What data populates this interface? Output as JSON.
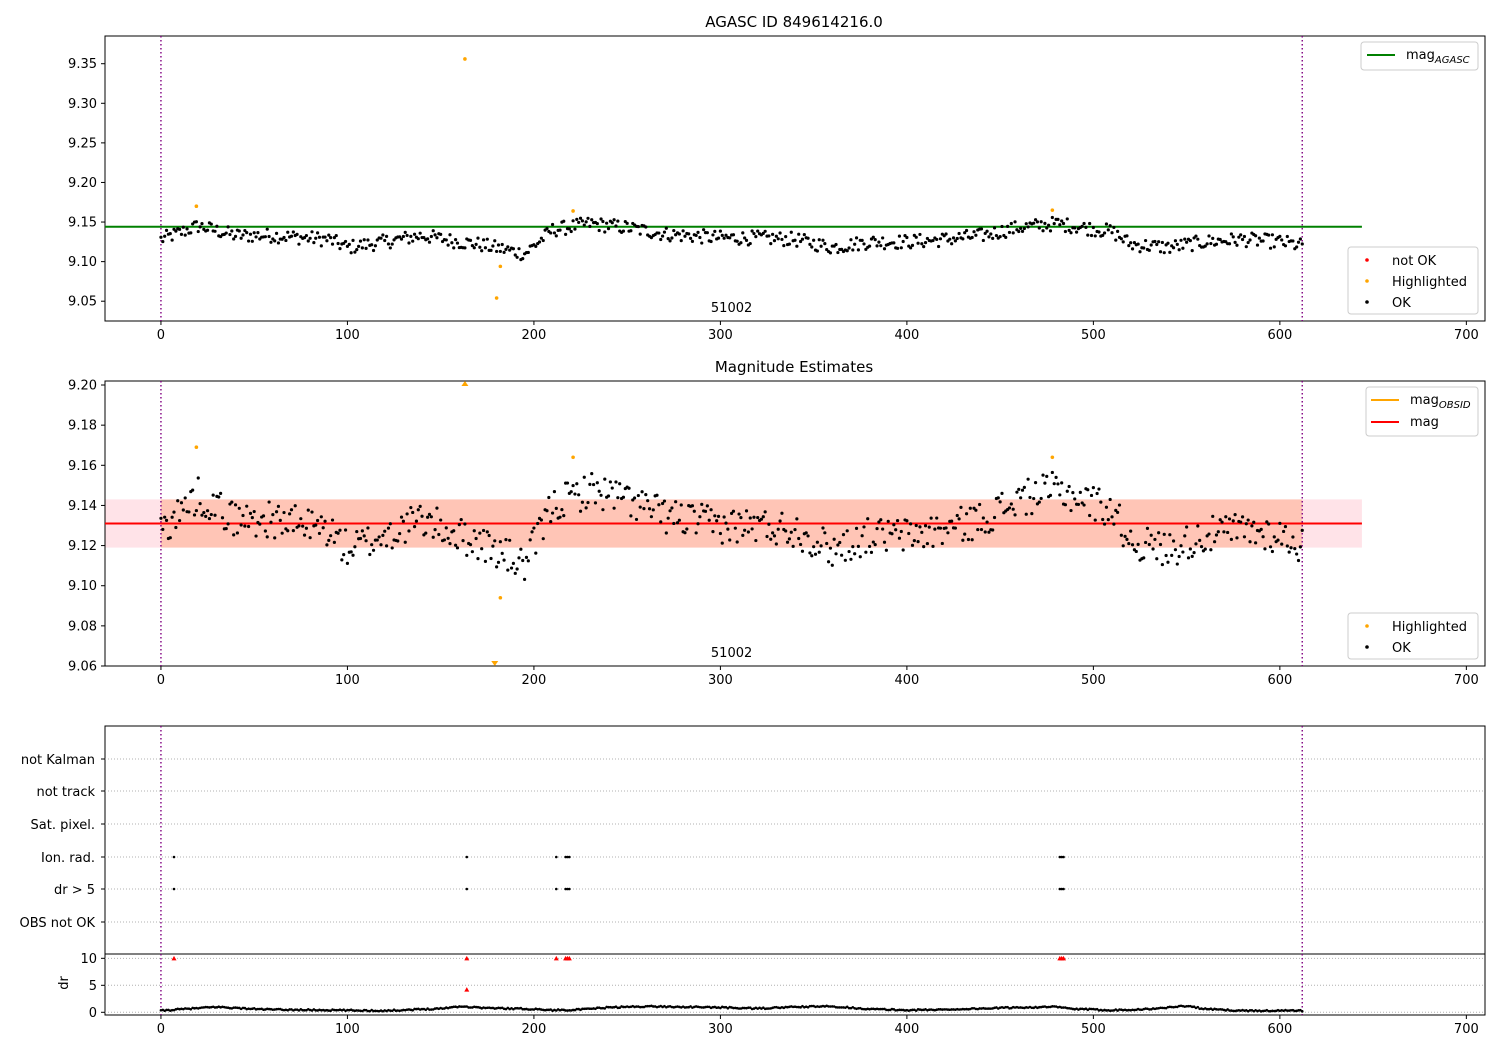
{
  "chart_data": [
    {
      "type": "scatter",
      "title": "AGASC ID 849614216.0",
      "xlabel": "",
      "ylabel": "",
      "xlim": [
        -30,
        710
      ],
      "ylim": [
        9.025,
        9.385
      ],
      "xticks": [
        0,
        100,
        200,
        300,
        400,
        500,
        600,
        700
      ],
      "yticks": [
        9.05,
        9.1,
        9.15,
        9.2,
        9.25,
        9.3,
        9.35
      ],
      "ytick_labels": [
        "9.05",
        "9.10",
        "9.15",
        "9.20",
        "9.25",
        "9.30",
        "9.35"
      ],
      "vlines": [
        0,
        612
      ],
      "obsid_label": "51002",
      "obsid_label_x": 306,
      "reference_line": {
        "name": "mag_AGASC",
        "label_main": "mag",
        "label_sub": "AGASC",
        "y": 9.144,
        "x": [
          -30,
          644
        ],
        "color": "#008000"
      },
      "series": [
        {
          "name": "not OK",
          "color": "#ff0000",
          "x": [],
          "y": []
        },
        {
          "name": "Highlighted",
          "color": "#ffa500",
          "x": [
            19,
            163,
            180,
            182,
            221,
            478
          ],
          "y": [
            9.17,
            9.356,
            9.054,
            9.094,
            9.164,
            9.165
          ]
        },
        {
          "name": "OK",
          "color": "#000000",
          "baseline": [
            [
              0,
              9.128
            ],
            [
              20,
              9.145
            ],
            [
              40,
              9.133
            ],
            [
              60,
              9.133
            ],
            [
              90,
              9.128
            ],
            [
              100,
              9.118
            ],
            [
              120,
              9.125
            ],
            [
              140,
              9.133
            ],
            [
              160,
              9.125
            ],
            [
              170,
              9.122
            ],
            [
              185,
              9.115
            ],
            [
              195,
              9.11
            ],
            [
              210,
              9.14
            ],
            [
              230,
              9.148
            ],
            [
              250,
              9.143
            ],
            [
              270,
              9.135
            ],
            [
              300,
              9.13
            ],
            [
              320,
              9.13
            ],
            [
              340,
              9.128
            ],
            [
              360,
              9.118
            ],
            [
              380,
              9.125
            ],
            [
              400,
              9.125
            ],
            [
              420,
              9.128
            ],
            [
              440,
              9.133
            ],
            [
              460,
              9.143
            ],
            [
              480,
              9.148
            ],
            [
              495,
              9.143
            ],
            [
              510,
              9.138
            ],
            [
              520,
              9.122
            ],
            [
              540,
              9.118
            ],
            [
              560,
              9.125
            ],
            [
              580,
              9.128
            ],
            [
              600,
              9.125
            ],
            [
              612,
              9.12
            ]
          ],
          "noise": 0.009,
          "step": 1,
          "x_range": [
            0,
            612
          ]
        }
      ],
      "legend": {
        "position": "top-right",
        "entries": [
          "mag_AGASC"
        ]
      },
      "legend2": {
        "position": "lower-right",
        "entries": [
          "not OK",
          "Highlighted",
          "OK"
        ]
      }
    },
    {
      "type": "scatter",
      "title": "Magnitude Estimates",
      "xlabel": "",
      "ylabel": "",
      "xlim": [
        -30,
        710
      ],
      "ylim": [
        9.06,
        9.202
      ],
      "xticks": [
        0,
        100,
        200,
        300,
        400,
        500,
        600,
        700
      ],
      "yticks": [
        9.06,
        9.08,
        9.1,
        9.12,
        9.14,
        9.16,
        9.18,
        9.2
      ],
      "ytick_labels": [
        "9.06",
        "9.08",
        "9.10",
        "9.12",
        "9.14",
        "9.16",
        "9.18",
        "9.20"
      ],
      "vlines": [
        0,
        612
      ],
      "obsid_label": "51002",
      "obsid_label_x": 306,
      "bands": [
        {
          "x": [
            -30,
            644
          ],
          "y": [
            9.119,
            9.143
          ],
          "color": "#ffc0cb",
          "opacity": 0.45
        },
        {
          "x": [
            0,
            612
          ],
          "y": [
            9.119,
            9.143
          ],
          "color": "#ffa07a",
          "opacity": 0.45
        }
      ],
      "lines": [
        {
          "name": "mag_OBSID",
          "label_main": "mag",
          "label_sub": "OBSID",
          "color": "#ffa500",
          "y": 9.131,
          "x": [
            0,
            612
          ]
        },
        {
          "name": "mag",
          "label_main": "mag",
          "color": "#ff0000",
          "y": 9.131,
          "x": [
            -30,
            644
          ]
        }
      ],
      "series": [
        {
          "name": "Highlighted",
          "color": "#ffa500",
          "x": [
            19,
            182,
            221,
            478
          ],
          "y": [
            9.169,
            9.094,
            9.164,
            9.164
          ]
        },
        {
          "name": "OK",
          "color": "#000000",
          "baseline": [
            [
              0,
              9.128
            ],
            [
              20,
              9.145
            ],
            [
              40,
              9.133
            ],
            [
              60,
              9.133
            ],
            [
              90,
              9.128
            ],
            [
              100,
              9.118
            ],
            [
              120,
              9.125
            ],
            [
              140,
              9.133
            ],
            [
              160,
              9.125
            ],
            [
              170,
              9.122
            ],
            [
              185,
              9.115
            ],
            [
              195,
              9.11
            ],
            [
              210,
              9.14
            ],
            [
              230,
              9.148
            ],
            [
              250,
              9.143
            ],
            [
              270,
              9.135
            ],
            [
              300,
              9.13
            ],
            [
              320,
              9.13
            ],
            [
              340,
              9.128
            ],
            [
              360,
              9.118
            ],
            [
              380,
              9.125
            ],
            [
              400,
              9.125
            ],
            [
              420,
              9.128
            ],
            [
              440,
              9.133
            ],
            [
              460,
              9.143
            ],
            [
              480,
              9.148
            ],
            [
              495,
              9.143
            ],
            [
              510,
              9.138
            ],
            [
              520,
              9.122
            ],
            [
              540,
              9.118
            ],
            [
              560,
              9.125
            ],
            [
              580,
              9.128
            ],
            [
              600,
              9.125
            ],
            [
              612,
              9.12
            ]
          ],
          "noise": 0.009,
          "step": 1,
          "x_range": [
            0,
            612
          ]
        }
      ],
      "out_of_range_markers": [
        {
          "x": 163,
          "direction": "up",
          "color": "#ffa500"
        },
        {
          "x": 179,
          "direction": "down",
          "color": "#ffa500"
        }
      ],
      "legend": {
        "position": "top-right",
        "entries": [
          "mag_OBSID",
          "mag"
        ]
      },
      "legend2": {
        "position": "lower-right",
        "entries": [
          "Highlighted",
          "OK"
        ]
      }
    },
    {
      "type": "scatter",
      "title": "",
      "xlabel": "",
      "ylabel": "",
      "xlim": [
        -30,
        710
      ],
      "vlines": [
        0,
        612
      ],
      "categories": [
        "not Kalman",
        "not track",
        "Sat. pixel.",
        "Ion. rad.",
        "dr > 5",
        "OBS not OK"
      ],
      "flags": {
        "Ion. rad.": [
          7,
          164,
          212,
          217,
          218,
          219,
          482,
          483,
          484
        ],
        "dr > 5": [
          7,
          164,
          212,
          217,
          218,
          219,
          482,
          483,
          484
        ]
      },
      "grid": "dotted horizontal"
    },
    {
      "type": "scatter",
      "title": "",
      "xlabel": "",
      "ylabel": "dr",
      "xlim": [
        -30,
        710
      ],
      "ylim": [
        -0.5,
        10.8
      ],
      "xticks": [
        0,
        100,
        200,
        300,
        400,
        500,
        600,
        700
      ],
      "yticks": [
        0,
        5,
        10
      ],
      "ytick_labels": [
        "0",
        "5",
        "10"
      ],
      "vlines": [
        0,
        612
      ],
      "series": [
        {
          "name": "dr",
          "color": "#000000",
          "segments": [
            [
              0,
              0.3
            ],
            [
              8,
              0.5
            ],
            [
              30,
              1.0
            ],
            [
              45,
              0.7
            ],
            [
              60,
              0.5
            ],
            [
              90,
              0.4
            ],
            [
              120,
              0.3
            ],
            [
              150,
              0.7
            ],
            [
              160,
              1.1
            ],
            [
              175,
              0.8
            ],
            [
              200,
              0.6
            ],
            [
              210,
              0.4
            ],
            [
              225,
              0.5
            ],
            [
              240,
              0.9
            ],
            [
              260,
              1.1
            ],
            [
              280,
              1.0
            ],
            [
              300,
              0.9
            ],
            [
              320,
              0.7
            ],
            [
              340,
              1.0
            ],
            [
              360,
              1.1
            ],
            [
              380,
              0.6
            ],
            [
              400,
              0.4
            ],
            [
              420,
              0.5
            ],
            [
              440,
              0.7
            ],
            [
              460,
              0.9
            ],
            [
              480,
              1.0
            ],
            [
              490,
              0.6
            ],
            [
              510,
              0.4
            ],
            [
              530,
              0.6
            ],
            [
              550,
              1.2
            ],
            [
              560,
              0.6
            ],
            [
              580,
              0.3
            ],
            [
              612,
              0.3
            ]
          ]
        },
        {
          "name": "dr clipped",
          "color": "#ff0000",
          "x": [
            7,
            164,
            212,
            217,
            218,
            219,
            482,
            483,
            484
          ],
          "y": [
            10,
            10,
            10,
            10,
            10,
            10,
            10,
            10,
            10
          ]
        },
        {
          "name": "dr highlighted",
          "color": "#ff0000",
          "x": [
            164
          ],
          "y": [
            4.2
          ]
        }
      ]
    }
  ]
}
